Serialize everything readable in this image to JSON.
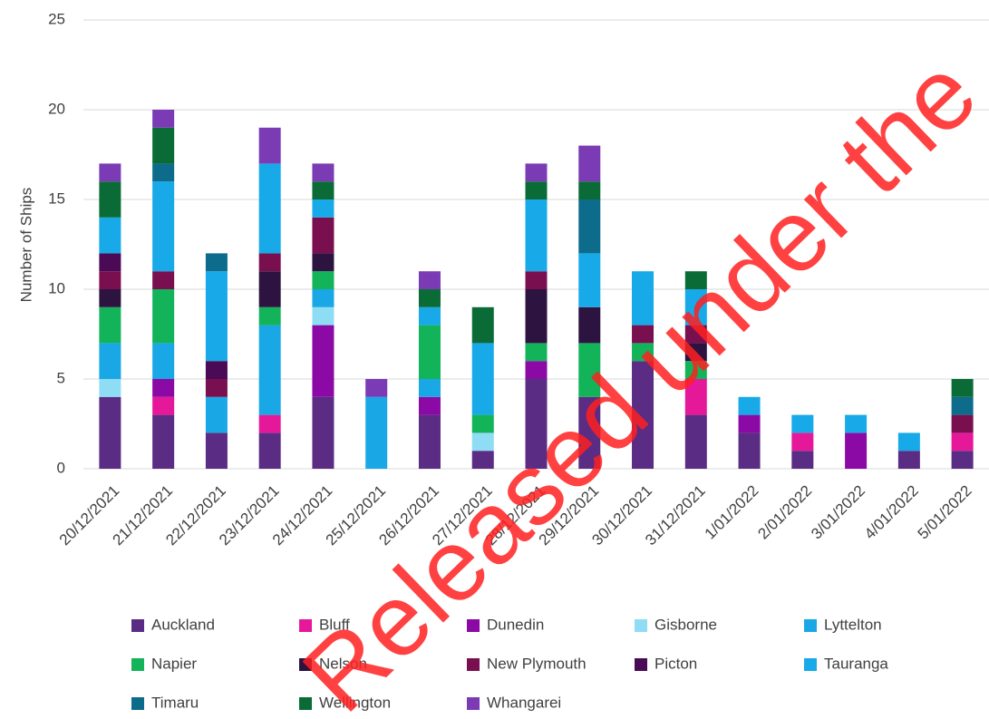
{
  "chart_data": {
    "type": "stacked_bar",
    "ylabel": "Number of Ships",
    "watermark": "Released under the",
    "categories": [
      "20/12/2021",
      "21/12/2021",
      "22/12/2021",
      "23/12/2021",
      "24/12/2021",
      "25/12/2021",
      "26/12/2021",
      "27/12/2021",
      "28/12/2021",
      "29/12/2021",
      "30/12/2021",
      "31/12/2021",
      "1/01/2022",
      "2/01/2022",
      "3/01/2022",
      "4/01/2022",
      "5/01/2022"
    ],
    "series": [
      {
        "name": "Auckland",
        "color": "#5b2c83",
        "values": [
          4,
          3,
          2,
          2,
          4,
          0,
          3,
          1,
          5,
          4,
          6,
          3,
          2,
          1,
          0,
          1,
          1
        ]
      },
      {
        "name": "Bluff",
        "color": "#e6189a",
        "values": [
          0,
          1,
          0,
          1,
          0,
          0,
          0,
          0,
          0,
          0,
          0,
          2,
          0,
          1,
          0,
          0,
          1
        ]
      },
      {
        "name": "Dunedin",
        "color": "#8b0aa5",
        "values": [
          0,
          1,
          0,
          0,
          4,
          0,
          1,
          0,
          1,
          0,
          0,
          0,
          1,
          0,
          2,
          0,
          0
        ]
      },
      {
        "name": "Gisborne",
        "color": "#8fdcf5",
        "values": [
          1,
          0,
          0,
          0,
          1,
          0,
          0,
          1,
          0,
          0,
          0,
          0,
          0,
          0,
          0,
          0,
          0
        ]
      },
      {
        "name": "Lyttelton",
        "color": "#1aa7e6",
        "values": [
          2,
          2,
          2,
          5,
          1,
          4,
          1,
          0,
          0,
          0,
          0,
          0,
          0,
          0,
          0,
          0,
          0
        ]
      },
      {
        "name": "Napier",
        "color": "#13b35a",
        "values": [
          2,
          3,
          0,
          1,
          1,
          0,
          3,
          1,
          1,
          3,
          1,
          1,
          0,
          0,
          0,
          0,
          0
        ]
      },
      {
        "name": "Nelson",
        "color": "#2d1340",
        "values": [
          1,
          0,
          0,
          2,
          1,
          0,
          0,
          0,
          3,
          2,
          0,
          1,
          0,
          0,
          0,
          0,
          0
        ]
      },
      {
        "name": "New Plymouth",
        "color": "#7a0f4f",
        "values": [
          1,
          1,
          1,
          1,
          2,
          0,
          0,
          0,
          1,
          0,
          1,
          1,
          0,
          0,
          0,
          0,
          1
        ]
      },
      {
        "name": "Picton",
        "color": "#4a0a55",
        "values": [
          1,
          0,
          1,
          0,
          0,
          0,
          0,
          0,
          0,
          0,
          0,
          0,
          0,
          0,
          0,
          0,
          0
        ]
      },
      {
        "name": "Tauranga",
        "color": "#17a9e8",
        "values": [
          2,
          5,
          5,
          5,
          1,
          0,
          1,
          4,
          4,
          3,
          3,
          2,
          1,
          1,
          1,
          1,
          0
        ]
      },
      {
        "name": "Timaru",
        "color": "#0d6c8c",
        "values": [
          0,
          1,
          1,
          0,
          0,
          0,
          0,
          0,
          0,
          3,
          0,
          0,
          0,
          0,
          0,
          0,
          1
        ]
      },
      {
        "name": "Wellington",
        "color": "#0b6b36",
        "values": [
          2,
          2,
          0,
          0,
          1,
          0,
          1,
          2,
          1,
          1,
          0,
          1,
          0,
          0,
          0,
          0,
          1
        ]
      },
      {
        "name": "Whangarei",
        "color": "#7b3bb5",
        "values": [
          1,
          1,
          0,
          2,
          1,
          1,
          1,
          0,
          1,
          2,
          0,
          0,
          0,
          0,
          0,
          0,
          0
        ]
      }
    ],
    "ylim": [
      0,
      25
    ],
    "yticks": [
      0,
      5,
      10,
      15,
      20,
      25
    ],
    "grid": true
  }
}
